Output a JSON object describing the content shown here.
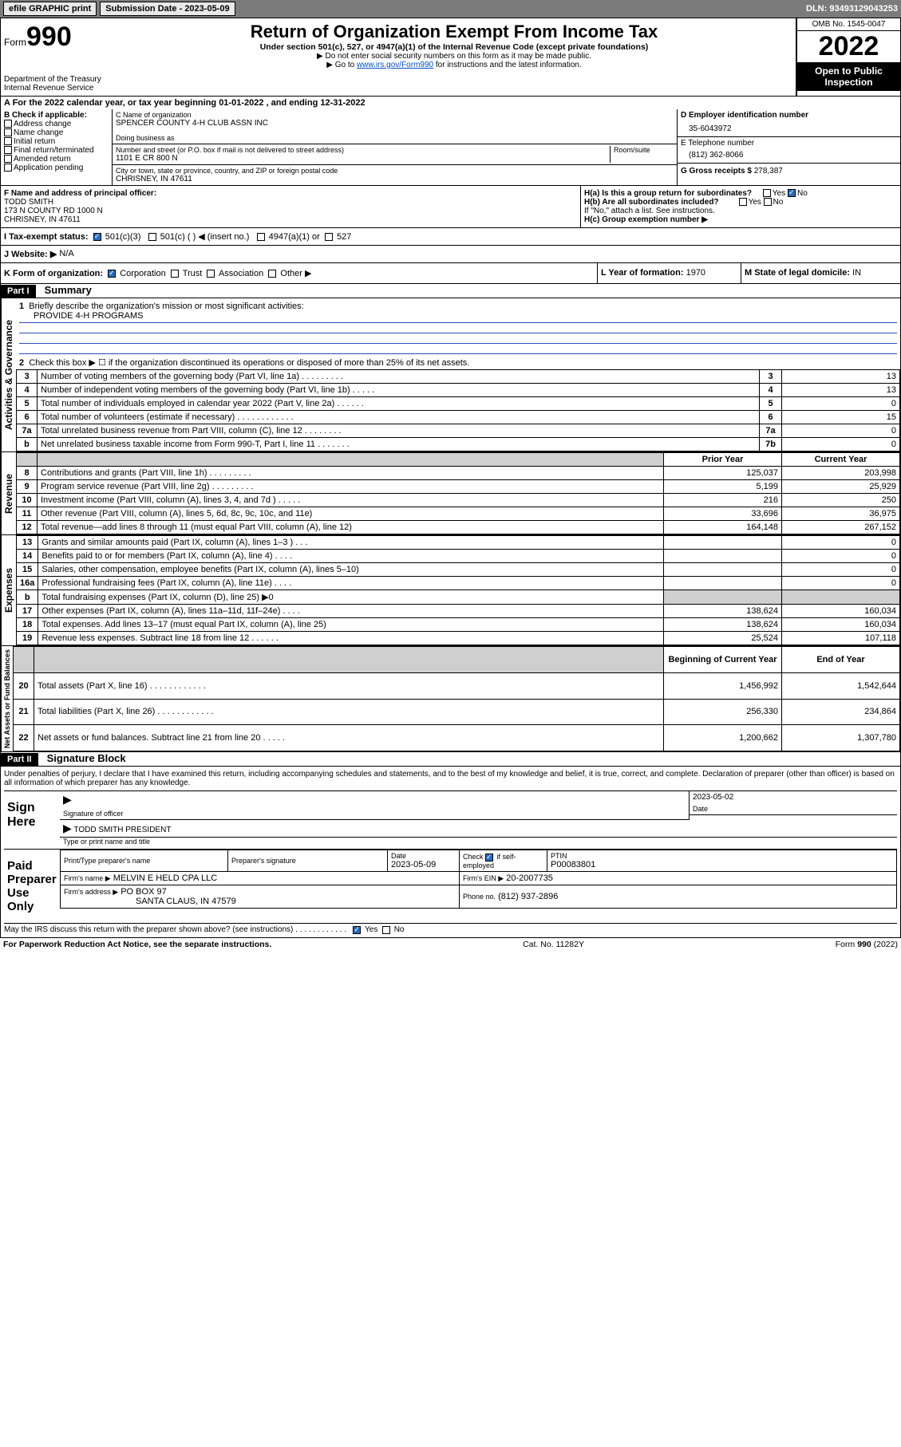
{
  "topbar": {
    "efile": "efile GRAPHIC print",
    "subdate_label": "Submission Date - 2023-05-09",
    "dln": "DLN: 93493129043253"
  },
  "header": {
    "form_label": "Form",
    "form_num": "990",
    "dept": "Department of the Treasury",
    "irs": "Internal Revenue Service",
    "title": "Return of Organization Exempt From Income Tax",
    "sub1": "Under section 501(c), 527, or 4947(a)(1) of the Internal Revenue Code (except private foundations)",
    "sub2": "▶ Do not enter social security numbers on this form as it may be made public.",
    "sub3_pre": "▶ Go to ",
    "sub3_link": "www.irs.gov/Form990",
    "sub3_post": " for instructions and the latest information.",
    "omb": "OMB No. 1545-0047",
    "year": "2022",
    "open": "Open to Public Inspection"
  },
  "period": {
    "text": "A For the 2022 calendar year, or tax year beginning 01-01-2022     , and ending 12-31-2022"
  },
  "boxB": {
    "label": "B Check if applicable:",
    "addr": "Address change",
    "name": "Name change",
    "init": "Initial return",
    "final": "Final return/terminated",
    "amend": "Amended return",
    "app": "Application pending"
  },
  "boxC": {
    "label": "C Name of organization",
    "org": "SPENCER COUNTY 4-H CLUB ASSN INC",
    "dba_label": "Doing business as",
    "street_label": "Number and street (or P.O. box if mail is not delivered to street address)",
    "room_label": "Room/suite",
    "street": "1101 E CR 800 N",
    "city_label": "City or town, state or province, country, and ZIP or foreign postal code",
    "city": "CHRISNEY, IN  47611"
  },
  "boxD": {
    "label": "D Employer identification number",
    "ein": "35-6043972"
  },
  "boxE": {
    "label": "E Telephone number",
    "phone": "(812) 362-8066"
  },
  "boxG": {
    "label": "G Gross receipts $",
    "amount": "278,387"
  },
  "boxF": {
    "label": "F Name and address of principal officer:",
    "name": "TODD SMITH",
    "addr1": "173 N COUNTY RD 1000 N",
    "addr2": "CHRISNEY, IN  47611"
  },
  "boxH": {
    "a": "H(a)  Is this a group return for subordinates?",
    "b": "H(b)  Are all subordinates included?",
    "note": "If \"No,\" attach a list. See instructions.",
    "c": "H(c)  Group exemption number ▶",
    "yes": "Yes",
    "no": "No"
  },
  "boxI": {
    "label": "I   Tax-exempt status:",
    "c3": "501(c)(3)",
    "c": "501(c) (   ) ◀ (insert no.)",
    "a1": "4947(a)(1) or",
    "c527": "527"
  },
  "boxJ": {
    "label": "J   Website: ▶",
    "val": "N/A"
  },
  "boxK": {
    "label": "K Form of organization:",
    "corp": "Corporation",
    "trust": "Trust",
    "assoc": "Association",
    "other": "Other ▶"
  },
  "boxL": {
    "label": "L Year of formation:",
    "val": "1970"
  },
  "boxM": {
    "label": "M State of legal domicile:",
    "val": "IN"
  },
  "part1": {
    "hdr": "Part I",
    "title": "Summary"
  },
  "summary": {
    "q1": "Briefly describe the organization's mission or most significant activities:",
    "q1v": "PROVIDE 4-H PROGRAMS",
    "q2": "Check this box ▶ ☐  if the organization discontinued its operations or disposed of more than 25% of its net assets.",
    "rows": [
      {
        "n": "3",
        "t": "Number of voting members of the governing body (Part VI, line 1a)  .    .    .    .    .    .    .    .    .",
        "c": "3",
        "v": "13"
      },
      {
        "n": "4",
        "t": "Number of independent voting members of the governing body (Part VI, line 1b)   .    .    .    .    .",
        "c": "4",
        "v": "13"
      },
      {
        "n": "5",
        "t": "Total number of individuals employed in calendar year 2022 (Part V, line 2a)   .    .    .    .    .    .",
        "c": "5",
        "v": "0"
      },
      {
        "n": "6",
        "t": "Total number of volunteers (estimate if necessary)   .    .    .    .    .    .    .    .    .    .    .    .",
        "c": "6",
        "v": "15"
      },
      {
        "n": "7a",
        "t": "Total unrelated business revenue from Part VIII, column (C), line 12   .    .    .    .    .    .    .    .",
        "c": "7a",
        "v": "0"
      },
      {
        "n": "b",
        "t": "Net unrelated business taxable income from Form 990-T, Part I, line 11   .    .    .    .    .    .    .",
        "c": "7b",
        "v": "0"
      }
    ],
    "col_prior": "Prior Year",
    "col_curr": "Current Year",
    "rev": [
      {
        "n": "8",
        "t": "Contributions and grants (Part VIII, line 1h)   .    .    .    .    .    .    .    .    .",
        "p": "125,037",
        "c": "203,998"
      },
      {
        "n": "9",
        "t": "Program service revenue (Part VIII, line 2g)   .    .    .    .    .    .    .    .    .",
        "p": "5,199",
        "c": "25,929"
      },
      {
        "n": "10",
        "t": "Investment income (Part VIII, column (A), lines 3, 4, and 7d )   .    .    .    .    .",
        "p": "216",
        "c": "250"
      },
      {
        "n": "11",
        "t": "Other revenue (Part VIII, column (A), lines 5, 6d, 8c, 9c, 10c, and 11e)",
        "p": "33,696",
        "c": "36,975"
      },
      {
        "n": "12",
        "t": "Total revenue—add lines 8 through 11 (must equal Part VIII, column (A), line 12)",
        "p": "164,148",
        "c": "267,152"
      }
    ],
    "exp": [
      {
        "n": "13",
        "t": "Grants and similar amounts paid (Part IX, column (A), lines 1–3 )   .    .    .",
        "p": "",
        "c": "0"
      },
      {
        "n": "14",
        "t": "Benefits paid to or for members (Part IX, column (A), line 4)   .    .    .    .",
        "p": "",
        "c": "0"
      },
      {
        "n": "15",
        "t": "Salaries, other compensation, employee benefits (Part IX, column (A), lines 5–10)",
        "p": "",
        "c": "0"
      },
      {
        "n": "16a",
        "t": "Professional fundraising fees (Part IX, column (A), line 11e)   .    .    .    .",
        "p": "",
        "c": "0"
      },
      {
        "n": "b",
        "t": "Total fundraising expenses (Part IX, column (D), line 25) ▶0",
        "p": "__shade__",
        "c": "__shade__"
      },
      {
        "n": "17",
        "t": "Other expenses (Part IX, column (A), lines 11a–11d, 11f–24e)   .    .    .    .",
        "p": "138,624",
        "c": "160,034"
      },
      {
        "n": "18",
        "t": "Total expenses. Add lines 13–17 (must equal Part IX, column (A), line 25)",
        "p": "138,624",
        "c": "160,034"
      },
      {
        "n": "19",
        "t": "Revenue less expenses. Subtract line 18 from line 12   .    .    .    .    .    .",
        "p": "25,524",
        "c": "107,118"
      }
    ],
    "col_beg": "Beginning of Current Year",
    "col_end": "End of Year",
    "net": [
      {
        "n": "20",
        "t": "Total assets (Part X, line 16)   .    .    .    .    .    .    .    .    .    .    .    .",
        "p": "1,456,992",
        "c": "1,542,644"
      },
      {
        "n": "21",
        "t": "Total liabilities (Part X, line 26)   .    .    .    .    .    .    .    .    .    .    .    .",
        "p": "256,330",
        "c": "234,864"
      },
      {
        "n": "22",
        "t": "Net assets or fund balances. Subtract line 21 from line 20   .    .    .    .    .",
        "p": "1,200,662",
        "c": "1,307,780"
      }
    ],
    "vlabels": {
      "ag": "Activities & Governance",
      "rev": "Revenue",
      "exp": "Expenses",
      "net": "Net Assets or Fund Balances"
    }
  },
  "part2": {
    "hdr": "Part II",
    "title": "Signature Block"
  },
  "sig": {
    "decl": "Under penalties of perjury, I declare that I have examined this return, including accompanying schedules and statements, and to the best of my knowledge and belief, it is true, correct, and complete. Declaration of preparer (other than officer) is based on all information of which preparer has any knowledge.",
    "sign_here": "Sign Here",
    "sig_officer": "Signature of officer",
    "date": "Date",
    "date_v": "2023-05-02",
    "name_title": "TODD SMITH  PRESIDENT",
    "type_name": "Type or print name and title",
    "paid": "Paid Preparer Use Only",
    "ptname": "Print/Type preparer's name",
    "psig": "Preparer's signature",
    "pdate": "Date",
    "pdate_v": "2023-05-09",
    "check_se": "Check ☑ if self-employed",
    "ptin": "PTIN",
    "ptin_v": "P00083801",
    "firm_name_l": "Firm's name   ▶",
    "firm_name": "MELVIN E HELD CPA LLC",
    "firm_ein_l": "Firm's EIN ▶",
    "firm_ein": "20-2007735",
    "firm_addr_l": "Firm's address ▶",
    "firm_addr1": "PO BOX 97",
    "firm_addr2": "SANTA CLAUS, IN  47579",
    "phone_l": "Phone no.",
    "phone": "(812) 937-2896",
    "discuss": "May the IRS discuss this return with the preparer shown above? (see instructions)   .    .    .    .    .    .    .    .    .    .    .    .",
    "yes": "Yes",
    "no": "No"
  },
  "footer": {
    "pra": "For Paperwork Reduction Act Notice, see the separate instructions.",
    "cat": "Cat. No. 11282Y",
    "form": "Form 990 (2022)"
  }
}
